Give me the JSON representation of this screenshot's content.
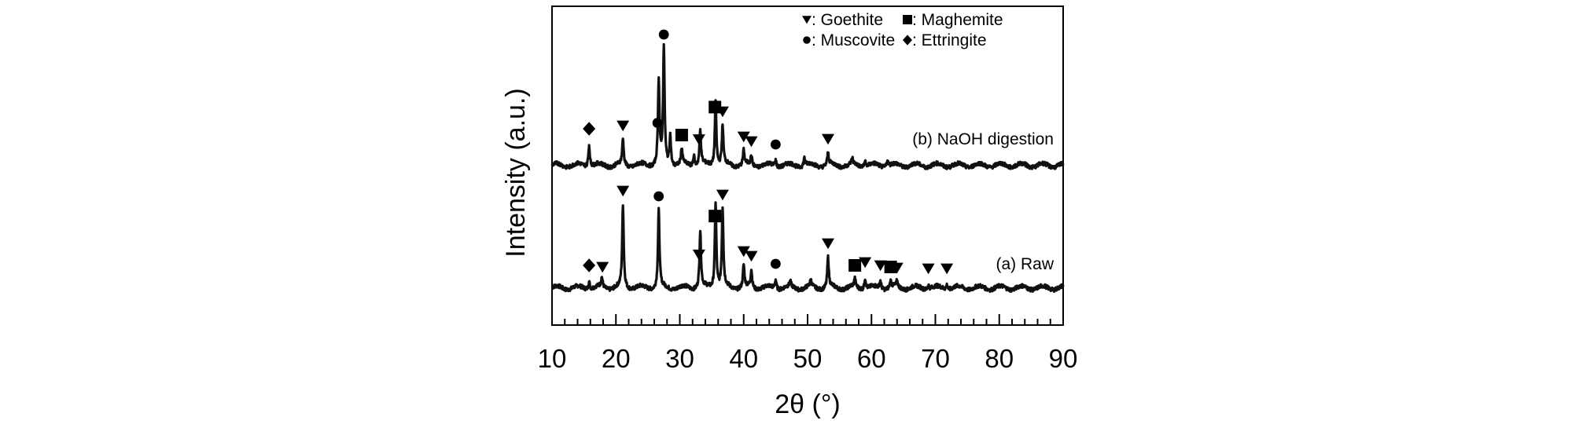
{
  "chart_data": {
    "type": "line",
    "xlabel": "2θ (°)",
    "ylabel": "Intensity (a.u.)",
    "xlim": [
      10,
      90
    ],
    "xticks": [
      10,
      20,
      30,
      40,
      50,
      60,
      70,
      80,
      90
    ],
    "xtick_labels": [
      "10",
      "20",
      "30",
      "40",
      "50",
      "60",
      "70",
      "80",
      "90"
    ],
    "yticks": "none",
    "legend": {
      "placement": "top-right",
      "entries": [
        {
          "marker": "triangle-down",
          "label": ": Goethite"
        },
        {
          "marker": "square",
          "label": ": Maghemite"
        },
        {
          "marker": "circle",
          "label": ": Muscovite"
        },
        {
          "marker": "diamond",
          "label": ": Ettringite"
        }
      ]
    },
    "series": [
      {
        "label": "(a) Raw",
        "peaks": [
          {
            "x": 15.8,
            "h": 10
          },
          {
            "x": 17.8,
            "h": 12
          },
          {
            "x": 21.1,
            "h": 105
          },
          {
            "x": 26.7,
            "h": 98
          },
          {
            "x": 33.2,
            "h": 72
          },
          {
            "x": 35.6,
            "h": 110
          },
          {
            "x": 36.7,
            "h": 100
          },
          {
            "x": 40.0,
            "h": 28
          },
          {
            "x": 41.2,
            "h": 22
          },
          {
            "x": 45.0,
            "h": 12
          },
          {
            "x": 47.3,
            "h": 6
          },
          {
            "x": 50.5,
            "h": 8
          },
          {
            "x": 53.2,
            "h": 38
          },
          {
            "x": 57.4,
            "h": 10
          },
          {
            "x": 59.0,
            "h": 14
          },
          {
            "x": 61.4,
            "h": 10
          },
          {
            "x": 63.0,
            "h": 8
          },
          {
            "x": 64.0,
            "h": 7
          },
          {
            "x": 68.9,
            "h": 6
          },
          {
            "x": 71.8,
            "h": 6
          }
        ],
        "markers": [
          {
            "x": 15.8,
            "type": "diamond"
          },
          {
            "x": 17.9,
            "type": "triangle-down"
          },
          {
            "x": 21.1,
            "type": "triangle-down"
          },
          {
            "x": 26.7,
            "type": "circle"
          },
          {
            "x": 33.0,
            "type": "triangle-down"
          },
          {
            "x": 35.5,
            "type": "square"
          },
          {
            "x": 36.7,
            "type": "triangle-down"
          },
          {
            "x": 40.0,
            "type": "triangle-down"
          },
          {
            "x": 41.2,
            "type": "triangle-down"
          },
          {
            "x": 45.0,
            "type": "circle"
          },
          {
            "x": 53.2,
            "type": "triangle-down"
          },
          {
            "x": 57.4,
            "type": "square"
          },
          {
            "x": 59.0,
            "type": "triangle-down"
          },
          {
            "x": 61.4,
            "type": "triangle-down"
          },
          {
            "x": 63.0,
            "type": "square"
          },
          {
            "x": 64.0,
            "type": "triangle-down"
          },
          {
            "x": 68.9,
            "type": "triangle-down"
          },
          {
            "x": 71.8,
            "type": "triangle-down"
          }
        ]
      },
      {
        "label": "(b) NaOH digestion",
        "peaks": [
          {
            "x": 15.8,
            "h": 28
          },
          {
            "x": 21.1,
            "h": 32
          },
          {
            "x": 26.7,
            "h": 108
          },
          {
            "x": 27.5,
            "h": 148
          },
          {
            "x": 28.5,
            "h": 38
          },
          {
            "x": 30.3,
            "h": 20
          },
          {
            "x": 32.2,
            "h": 14
          },
          {
            "x": 33.2,
            "h": 44
          },
          {
            "x": 35.6,
            "h": 84
          },
          {
            "x": 36.7,
            "h": 50
          },
          {
            "x": 40.0,
            "h": 18
          },
          {
            "x": 41.2,
            "h": 12
          },
          {
            "x": 45.0,
            "h": 8
          },
          {
            "x": 49.5,
            "h": 10
          },
          {
            "x": 53.2,
            "h": 15
          },
          {
            "x": 57.0,
            "h": 7
          },
          {
            "x": 59.0,
            "h": 7
          },
          {
            "x": 62.5,
            "h": 8
          }
        ],
        "markers": [
          {
            "x": 15.8,
            "type": "diamond"
          },
          {
            "x": 21.1,
            "type": "triangle-down"
          },
          {
            "x": 26.5,
            "type": "circle"
          },
          {
            "x": 27.5,
            "type": "circle"
          },
          {
            "x": 30.3,
            "type": "square"
          },
          {
            "x": 33.0,
            "type": "triangle-down"
          },
          {
            "x": 35.5,
            "type": "square"
          },
          {
            "x": 36.7,
            "type": "triangle-down"
          },
          {
            "x": 40.0,
            "type": "triangle-down"
          },
          {
            "x": 41.2,
            "type": "triangle-down"
          },
          {
            "x": 45.0,
            "type": "circle"
          },
          {
            "x": 53.2,
            "type": "triangle-down"
          }
        ]
      }
    ]
  }
}
